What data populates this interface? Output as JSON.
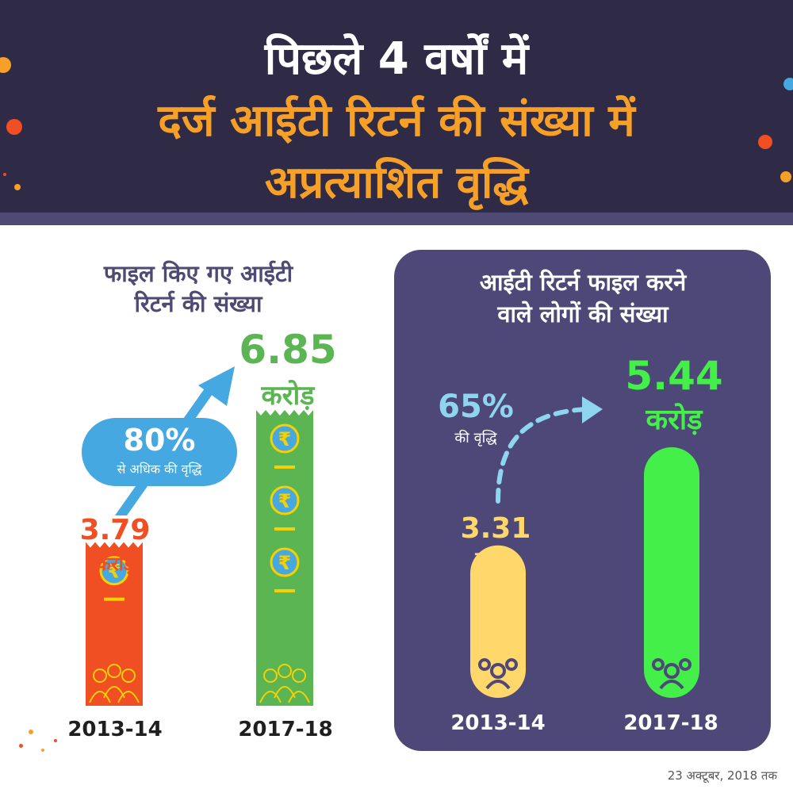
{
  "header": {
    "line1": "पिछले 4 वर्षों में",
    "line2": "दर्ज आईटी रिटर्न की संख्या में",
    "line3": "अप्रत्याशित वृद्धि"
  },
  "colors": {
    "header_bg": "#2f2b47",
    "panel_bg": "#4d4877",
    "orange": "#f7a027",
    "red_bar": "#f04e23",
    "green_bar": "#5ab552",
    "blue_arrow": "#45a8e0",
    "yellow_pill": "#ffd76a",
    "green_pill": "#45ef4a",
    "light_blue_text": "#8ed6ef"
  },
  "footnote": "23 अक्टूबर, 2018 तक",
  "chart_data": [
    {
      "type": "bar",
      "title": "फाइल किए गए आईटी रिटर्न की संख्या",
      "title_lines": [
        "फाइल किए गए आईटी",
        "रिटर्न की संख्या"
      ],
      "categories": [
        "2013-14",
        "2017-18"
      ],
      "values": [
        3.79,
        6.85
      ],
      "value_labels": [
        "3.79",
        "6.85"
      ],
      "unit": "करोड़",
      "annotation": {
        "value": "80%",
        "text": "से अधिक की वृद्धि"
      },
      "icons": [
        "rupee-icon",
        "people-icon"
      ]
    },
    {
      "type": "bar",
      "title": "आईटी रिटर्न फाइल करने वाले लोगों की संख्या",
      "title_lines": [
        "आईटी रिटर्न फाइल करने",
        "वाले लोगों की संख्या"
      ],
      "categories": [
        "2013-14",
        "2017-18"
      ],
      "values": [
        3.31,
        5.44
      ],
      "value_labels": [
        "3.31",
        "5.44"
      ],
      "unit": "करोड़",
      "annotation": {
        "value": "65%",
        "text": "की वृद्धि"
      },
      "icons": [
        "people-icon"
      ]
    }
  ]
}
